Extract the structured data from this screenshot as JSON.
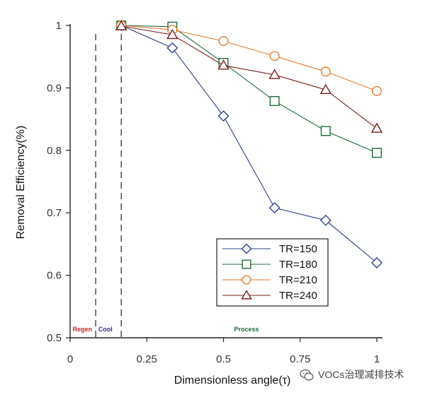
{
  "chart_data": {
    "type": "line",
    "title": "",
    "xlabel": "Dimensionless angle(τ)",
    "ylabel": "Removal Efficiency(%)",
    "xlim": [
      0,
      1
    ],
    "ylim": [
      0.5,
      1
    ],
    "xticks": [
      0,
      0.25,
      0.5,
      0.75,
      1
    ],
    "xtick_labels": [
      "0",
      "0.25",
      "0.5",
      "0.75",
      "1"
    ],
    "yticks": [
      0.5,
      0.6,
      0.7,
      0.8,
      0.9,
      1
    ],
    "ytick_labels": [
      "0.5",
      "0.6",
      "0.7",
      "0.8",
      "0.9",
      "1"
    ],
    "grid": false,
    "legend_position": "bottom-right",
    "phase_boundaries": [
      0.0833,
      0.1667
    ],
    "phase_labels": [
      {
        "text": "Regen",
        "x": 0.04,
        "color": "#cc2222"
      },
      {
        "text": "Cool",
        "x": 0.115,
        "color": "#2a2a8a"
      },
      {
        "text": "Process",
        "x": 0.575,
        "color": "#1e6b3a"
      }
    ],
    "series": [
      {
        "name": "TR=150",
        "marker": "diamond",
        "color": "#2e3f8f",
        "x": [
          0.1667,
          0.3333,
          0.5,
          0.6667,
          0.8333,
          1.0
        ],
        "values": [
          1.0,
          0.964,
          0.855,
          0.708,
          0.688,
          0.62
        ]
      },
      {
        "name": "TR=180",
        "marker": "square",
        "color": "#1e6b3a",
        "x": [
          0.1667,
          0.3333,
          0.5,
          0.6667,
          0.8333,
          1.0
        ],
        "values": [
          1.0,
          0.998,
          0.94,
          0.879,
          0.831,
          0.796
        ]
      },
      {
        "name": "TR=210",
        "marker": "circle",
        "color": "#e87a2c",
        "x": [
          0.1667,
          0.3333,
          0.5,
          0.6667,
          0.8333,
          1.0
        ],
        "values": [
          1.0,
          0.993,
          0.975,
          0.951,
          0.926,
          0.895
        ]
      },
      {
        "name": "TR=240",
        "marker": "triangle",
        "color": "#7a1f1f",
        "x": [
          0.1667,
          0.3333,
          0.5,
          0.6667,
          0.8333,
          1.0
        ],
        "values": [
          0.999,
          0.985,
          0.936,
          0.921,
          0.897,
          0.835
        ]
      }
    ]
  },
  "watermark": {
    "text": "VOCs治理减排技术",
    "icon": "wechat-icon"
  }
}
